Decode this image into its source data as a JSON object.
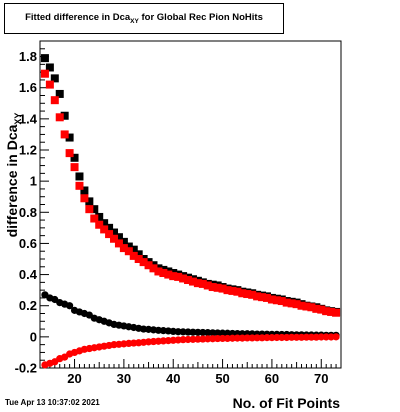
{
  "title": {
    "prefix": "Fitted difference in Dca",
    "subscript": "XY",
    "suffix": " for Global Rec Pion NoHits"
  },
  "footer_date": "Tue Apr 13 10:37:02 2021",
  "chart_data": {
    "type": "scatter",
    "xlabel": "No. of Fit Points",
    "ylabel": "difference in Dca",
    "ylabel_subscript": "XY",
    "xlim": [
      13,
      74
    ],
    "ylim": [
      -0.2,
      1.9
    ],
    "x_ticks": [
      20,
      30,
      40,
      50,
      60,
      70
    ],
    "y_ticks": [
      -0.2,
      0,
      0.2,
      0.4,
      0.6,
      0.8,
      1,
      1.2,
      1.4,
      1.6,
      1.8
    ],
    "x_tick_labels": [
      "20",
      "30",
      "40",
      "50",
      "60",
      "70"
    ],
    "y_tick_labels": [
      "-0.2",
      "0",
      "0.2",
      "0.4",
      "0.6",
      "0.8",
      "1",
      "1.2",
      "1.4",
      "1.6",
      "1.8"
    ],
    "grid": false,
    "series": [
      {
        "color": "#000000",
        "marker": "square",
        "x": [
          14,
          15,
          16,
          17,
          18,
          19,
          20,
          21,
          22,
          23,
          24,
          25,
          26,
          27,
          28,
          29,
          30,
          31,
          32,
          33,
          34,
          35,
          36,
          37,
          38,
          39,
          40,
          41,
          42,
          43,
          44,
          45,
          46,
          47,
          48,
          49,
          50,
          51,
          52,
          53,
          54,
          55,
          56,
          57,
          58,
          59,
          60,
          61,
          62,
          63,
          64,
          65,
          66,
          67,
          68,
          69,
          70,
          71,
          72,
          73
        ],
        "values": [
          1.79,
          1.73,
          1.66,
          1.56,
          1.42,
          1.28,
          1.15,
          1.03,
          0.94,
          0.87,
          0.82,
          0.77,
          0.73,
          0.7,
          0.67,
          0.64,
          0.61,
          0.58,
          0.56,
          0.53,
          0.5,
          0.48,
          0.46,
          0.44,
          0.43,
          0.42,
          0.41,
          0.4,
          0.39,
          0.38,
          0.37,
          0.36,
          0.35,
          0.34,
          0.335,
          0.33,
          0.32,
          0.31,
          0.305,
          0.3,
          0.29,
          0.285,
          0.28,
          0.27,
          0.265,
          0.26,
          0.25,
          0.245,
          0.24,
          0.23,
          0.225,
          0.22,
          0.21,
          0.2,
          0.195,
          0.19,
          0.18,
          0.17,
          0.165,
          0.16
        ]
      },
      {
        "color": "#ff0000",
        "marker": "square",
        "x": [
          14,
          15,
          16,
          17,
          18,
          19,
          20,
          21,
          22,
          23,
          24,
          25,
          26,
          27,
          28,
          29,
          30,
          31,
          32,
          33,
          34,
          35,
          36,
          37,
          38,
          39,
          40,
          41,
          42,
          43,
          44,
          45,
          46,
          47,
          48,
          49,
          50,
          51,
          52,
          53,
          54,
          55,
          56,
          57,
          58,
          59,
          60,
          61,
          62,
          63,
          64,
          65,
          66,
          67,
          68,
          69,
          70,
          71,
          72,
          73
        ],
        "values": [
          1.69,
          1.62,
          1.52,
          1.41,
          1.3,
          1.18,
          1.09,
          0.97,
          0.89,
          0.82,
          0.76,
          0.72,
          0.69,
          0.66,
          0.63,
          0.6,
          0.57,
          0.55,
          0.52,
          0.5,
          0.48,
          0.46,
          0.44,
          0.42,
          0.41,
          0.4,
          0.39,
          0.385,
          0.375,
          0.365,
          0.355,
          0.345,
          0.34,
          0.33,
          0.32,
          0.315,
          0.31,
          0.3,
          0.295,
          0.29,
          0.28,
          0.275,
          0.27,
          0.26,
          0.255,
          0.25,
          0.24,
          0.235,
          0.23,
          0.22,
          0.215,
          0.21,
          0.2,
          0.195,
          0.19,
          0.18,
          0.175,
          0.165,
          0.16,
          0.155
        ]
      },
      {
        "color": "#000000",
        "marker": "circle",
        "x": [
          14,
          15,
          16,
          17,
          18,
          19,
          20,
          21,
          22,
          23,
          24,
          25,
          26,
          27,
          28,
          29,
          30,
          31,
          32,
          33,
          34,
          35,
          36,
          37,
          38,
          39,
          40,
          41,
          42,
          43,
          44,
          45,
          46,
          47,
          48,
          49,
          50,
          51,
          52,
          53,
          54,
          55,
          56,
          57,
          58,
          59,
          60,
          61,
          62,
          63,
          64,
          65,
          66,
          67,
          68,
          69,
          70,
          71,
          72,
          73
        ],
        "values": [
          0.27,
          0.25,
          0.24,
          0.22,
          0.21,
          0.2,
          0.17,
          0.16,
          0.15,
          0.14,
          0.12,
          0.11,
          0.1,
          0.09,
          0.08,
          0.075,
          0.07,
          0.065,
          0.06,
          0.055,
          0.05,
          0.048,
          0.045,
          0.042,
          0.04,
          0.038,
          0.035,
          0.033,
          0.032,
          0.031,
          0.03,
          0.029,
          0.028,
          0.027,
          0.026,
          0.025,
          0.024,
          0.023,
          0.022,
          0.021,
          0.02,
          0.02,
          0.019,
          0.018,
          0.018,
          0.017,
          0.016,
          0.016,
          0.015,
          0.015,
          0.014,
          0.013,
          0.013,
          0.012,
          0.012,
          0.011,
          0.011,
          0.01,
          0.01,
          0.01
        ]
      },
      {
        "color": "#ff0000",
        "marker": "circle",
        "x": [
          14,
          15,
          16,
          17,
          18,
          19,
          20,
          21,
          22,
          23,
          24,
          25,
          26,
          27,
          28,
          29,
          30,
          31,
          32,
          33,
          34,
          35,
          36,
          37,
          38,
          39,
          40,
          41,
          42,
          43,
          44,
          45,
          46,
          47,
          48,
          49,
          50,
          51,
          52,
          53,
          54,
          55,
          56,
          57,
          58,
          59,
          60,
          61,
          62,
          63,
          64,
          65,
          66,
          67,
          68,
          69,
          70,
          71,
          72,
          73
        ],
        "values": [
          -0.18,
          -0.17,
          -0.16,
          -0.14,
          -0.13,
          -0.11,
          -0.1,
          -0.09,
          -0.08,
          -0.075,
          -0.07,
          -0.065,
          -0.06,
          -0.055,
          -0.05,
          -0.048,
          -0.045,
          -0.042,
          -0.04,
          -0.038,
          -0.035,
          -0.032,
          -0.03,
          -0.028,
          -0.026,
          -0.024,
          -0.022,
          -0.02,
          -0.018,
          -0.017,
          -0.016,
          -0.015,
          -0.014,
          -0.013,
          -0.012,
          -0.011,
          -0.01,
          -0.01,
          -0.009,
          -0.008,
          -0.008,
          -0.007,
          -0.007,
          -0.006,
          -0.006,
          -0.005,
          -0.005,
          -0.004,
          -0.004,
          -0.004,
          -0.003,
          -0.003,
          -0.003,
          -0.002,
          -0.002,
          -0.002,
          -0.001,
          -0.001,
          -0.001,
          0
        ]
      }
    ]
  }
}
